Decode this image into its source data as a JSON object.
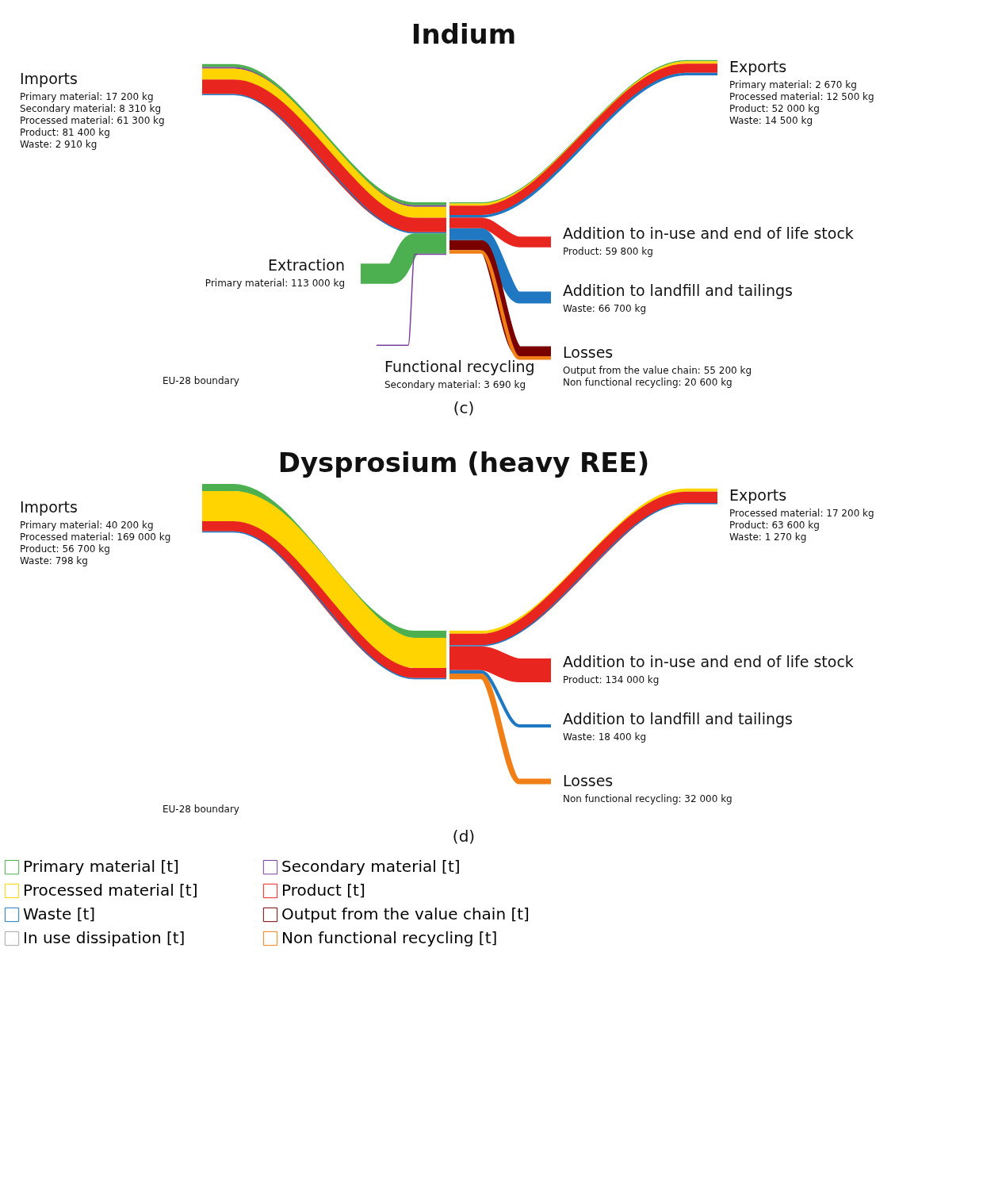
{
  "chart_data": [
    {
      "type": "other",
      "title": "Indium",
      "categories": [
        "Imports",
        "Exports",
        "Addition to in-use and end of life stock",
        "Addition to landfill and tailings",
        "Losses",
        "Extraction",
        "Functional recycling"
      ],
      "series": [
        {
          "color": "#4caf50",
          "values": [
            17200,
            2670,
            null,
            null,
            null,
            113000,
            null
          ],
          "value_labels": [
            "Primary material: 17 200 kg",
            "Primary material: 2 670 kg",
            null,
            null,
            null,
            "Primary material: 113 000 kg",
            null
          ]
        },
        {
          "color": "#7b3f9e",
          "values": [
            8310,
            null,
            null,
            null,
            null,
            null,
            3690
          ],
          "value_labels": [
            "Secondary material: 8 310 kg",
            null,
            null,
            null,
            null,
            null,
            "Secondary material: 3 690 kg"
          ]
        },
        {
          "color": "#ffd400",
          "values": [
            61300,
            12500,
            null,
            null,
            null,
            null,
            null
          ],
          "value_labels": [
            "Processed material: 61 300 kg",
            "Processed material: 12 500 kg",
            null,
            null,
            null,
            null,
            null
          ]
        },
        {
          "color": "#e8251f",
          "values": [
            81400,
            52000,
            59800,
            null,
            null,
            null,
            null
          ],
          "value_labels": [
            "Product: 81 400 kg",
            "Product: 52 000 kg",
            "Product: 59 800 kg",
            null,
            null,
            null,
            null
          ]
        },
        {
          "color": "#1f78c1",
          "values": [
            2910,
            14500,
            null,
            66700,
            null,
            null,
            null
          ],
          "value_labels": [
            "Waste: 2 910 kg",
            "Waste: 14 500 kg",
            null,
            "Waste: 66 700 kg",
            null,
            null,
            null
          ]
        },
        {
          "color": "#7a0000",
          "values": [
            null,
            null,
            null,
            null,
            55200,
            null,
            null
          ],
          "value_labels": [
            null,
            null,
            null,
            null,
            "Output from the value chain: 55 200 kg",
            null,
            null
          ]
        },
        {
          "color": "#a6a6a6",
          "values": [
            null,
            null,
            null,
            null,
            null,
            null,
            null
          ]
        },
        {
          "color": "#f07f17",
          "values": [
            null,
            null,
            null,
            null,
            20600,
            null,
            null
          ],
          "value_labels": [
            null,
            null,
            null,
            null,
            "Non functional recycling: 20 600 kg",
            null,
            null
          ]
        }
      ],
      "annotations": [
        "EU-28 boundary",
        "(c)"
      ]
    },
    {
      "type": "other",
      "title": "Dysprosium (heavy REE)",
      "categories": [
        "Imports",
        "Exports",
        "Addition to in-use and end of life stock",
        "Addition to landfill and tailings",
        "Losses"
      ],
      "series": [
        {
          "name": "Primary material [t]",
          "color": "#4caf50",
          "values": [
            40200,
            null,
            null,
            null,
            null
          ],
          "value_labels": [
            "Primary material: 40 200 kg",
            null,
            null,
            null,
            null
          ]
        },
        {
          "name": "Secondary material [t]",
          "color": "#7b3f9e",
          "values": [
            null,
            null,
            null,
            null,
            null
          ]
        },
        {
          "name": "Processed material [t]",
          "color": "#ffd400",
          "values": [
            169000,
            17200,
            null,
            null,
            null
          ],
          "value_labels": [
            "Processed material: 169 000 kg",
            "Processed material: 17 200 kg",
            null,
            null,
            null
          ]
        },
        {
          "name": "Product [t]",
          "color": "#e8251f",
          "values": [
            56700,
            63600,
            134000,
            null,
            null
          ],
          "value_labels": [
            "Product: 56 700 kg",
            "Product: 63 600 kg",
            "Product: 134 000 kg",
            null,
            null
          ]
        },
        {
          "name": "Waste [t]",
          "color": "#1f78c1",
          "values": [
            798,
            1270,
            null,
            18400,
            null
          ],
          "value_labels": [
            "Waste: 798 kg",
            "Waste: 1 270 kg",
            null,
            "Waste: 18 400 kg",
            null
          ]
        },
        {
          "name": "Output from the value chain [t]",
          "color": "#7a0000",
          "values": [
            null,
            null,
            null,
            null,
            null
          ]
        },
        {
          "name": "In use dissipation [t]",
          "color": "#a6a6a6",
          "values": [
            null,
            null,
            null,
            null,
            null
          ]
        },
        {
          "name": "Non functional recycling [t]",
          "color": "#f07f17",
          "values": [
            null,
            null,
            null,
            null,
            32000
          ],
          "value_labels": [
            null,
            null,
            null,
            null,
            "Non functional recycling: 32 000 kg"
          ]
        }
      ],
      "annotations": [
        "EU-28 boundary",
        "(d)"
      ],
      "legend": "bottom"
    }
  ]
}
